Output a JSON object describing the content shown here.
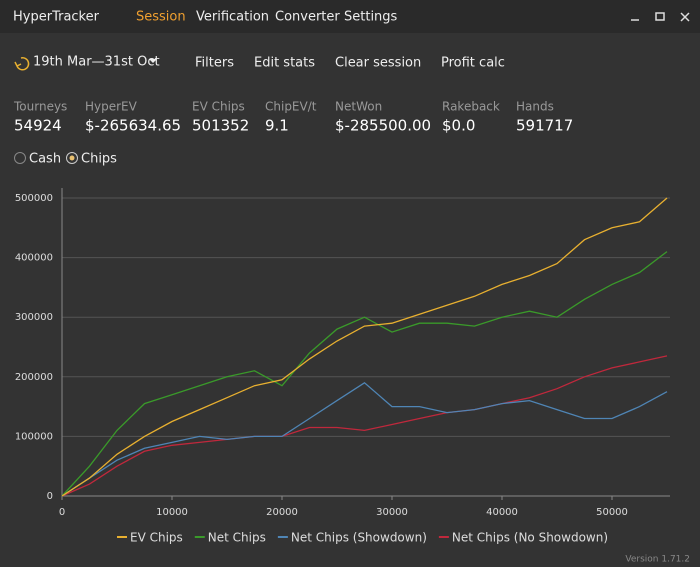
{
  "app": {
    "title": "HyperTracker",
    "menu": [
      "Session",
      "Verification",
      "Converter",
      "Settings"
    ]
  },
  "toolbar": {
    "date_range": "19th Mar—31st Oct",
    "buttons": [
      "Filters",
      "Edit stats",
      "Clear session",
      "Profit calc"
    ]
  },
  "stats": [
    {
      "label": "Tourneys",
      "value": "54924"
    },
    {
      "label": "HyperEV",
      "value": "$-265634.65"
    },
    {
      "label": "EV Chips",
      "value": "501352"
    },
    {
      "label": "ChipEV/t",
      "value": "9.1"
    },
    {
      "label": "NetWon",
      "value": "$-285500.00"
    },
    {
      "label": "Rakeback",
      "value": "$0.0"
    },
    {
      "label": "Hands",
      "value": "591717"
    }
  ],
  "mode": {
    "options": [
      "Cash",
      "Chips"
    ],
    "selected": 1
  },
  "chart_data": {
    "type": "line",
    "x": [
      0,
      2500,
      5000,
      7500,
      10000,
      12500,
      15000,
      17500,
      20000,
      22500,
      25000,
      27500,
      30000,
      32500,
      35000,
      37500,
      40000,
      42500,
      45000,
      47500,
      50000,
      52500,
      55000
    ],
    "series": [
      {
        "name": "EV Chips",
        "color": "#e8b030",
        "values": [
          0,
          30000,
          70000,
          100000,
          125000,
          145000,
          165000,
          185000,
          195000,
          230000,
          260000,
          285000,
          290000,
          305000,
          320000,
          335000,
          355000,
          370000,
          390000,
          430000,
          450000,
          460000,
          500000
        ]
      },
      {
        "name": "Net Chips",
        "color": "#3a9a2a",
        "values": [
          0,
          50000,
          110000,
          155000,
          170000,
          185000,
          200000,
          210000,
          185000,
          240000,
          280000,
          300000,
          275000,
          290000,
          290000,
          285000,
          300000,
          310000,
          300000,
          330000,
          355000,
          375000,
          410000
        ]
      },
      {
        "name": "Net Chips (Showdown)",
        "color": "#4f85b5",
        "values": [
          0,
          30000,
          60000,
          80000,
          90000,
          100000,
          95000,
          100000,
          100000,
          130000,
          160000,
          190000,
          150000,
          150000,
          140000,
          145000,
          155000,
          160000,
          145000,
          130000,
          130000,
          150000,
          175000
        ]
      },
      {
        "name": "Net Chips (No Showdown)",
        "color": "#c0283c",
        "values": [
          0,
          20000,
          50000,
          75000,
          85000,
          90000,
          95000,
          100000,
          100000,
          115000,
          115000,
          110000,
          120000,
          130000,
          140000,
          145000,
          155000,
          165000,
          180000,
          200000,
          215000,
          225000,
          235000
        ]
      }
    ],
    "xlim": [
      0,
      55000
    ],
    "xticks": [
      0,
      10000,
      20000,
      30000,
      40000,
      50000
    ],
    "ylim": [
      0,
      500000
    ],
    "yticks": [
      0,
      100000,
      200000,
      300000,
      400000,
      500000
    ],
    "grid": true
  },
  "footer": {
    "version": "Version 1.71.2"
  }
}
